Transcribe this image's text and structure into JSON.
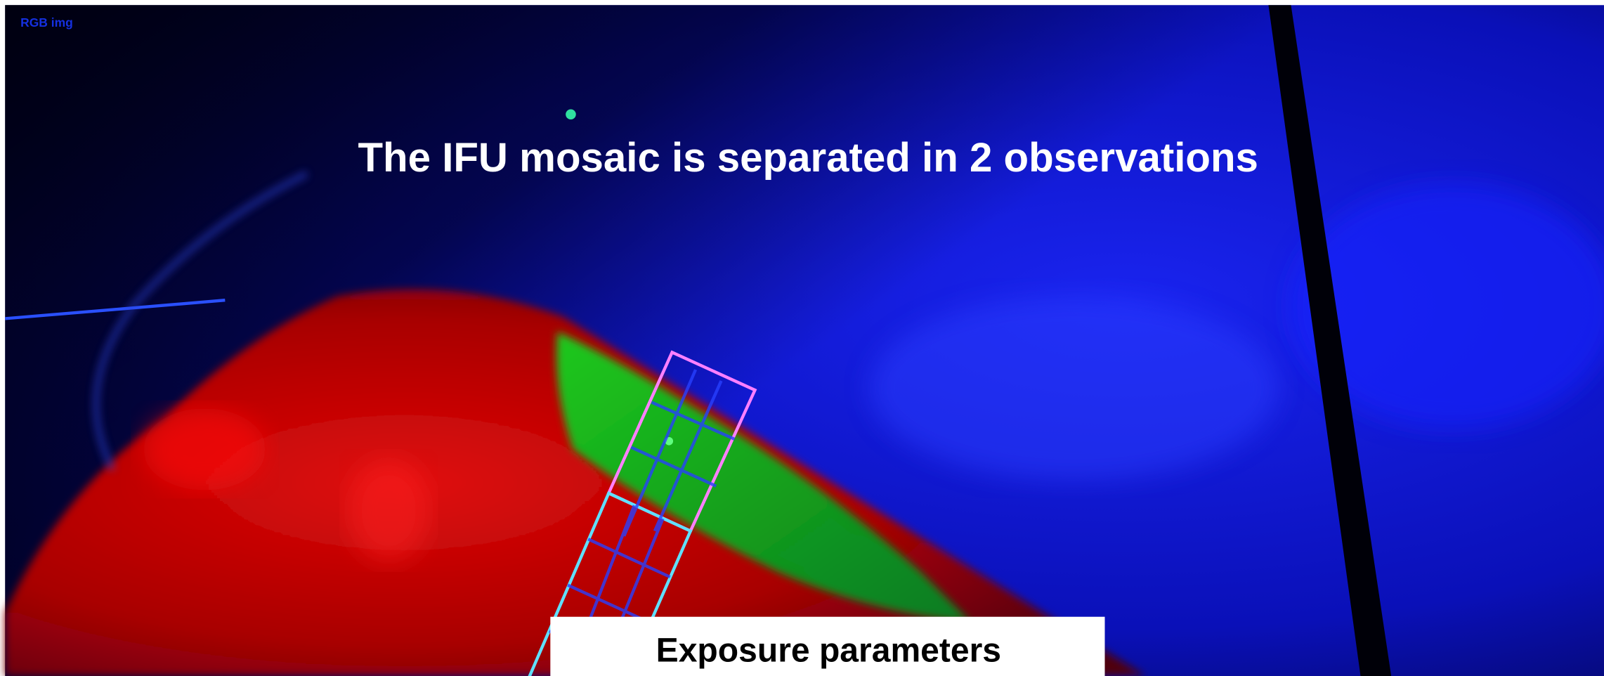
{
  "overlay_label": "RGB img",
  "title": "The IFU mosaic is separated in 2 observations",
  "panel": {
    "title": "Exposure parameters"
  }
}
